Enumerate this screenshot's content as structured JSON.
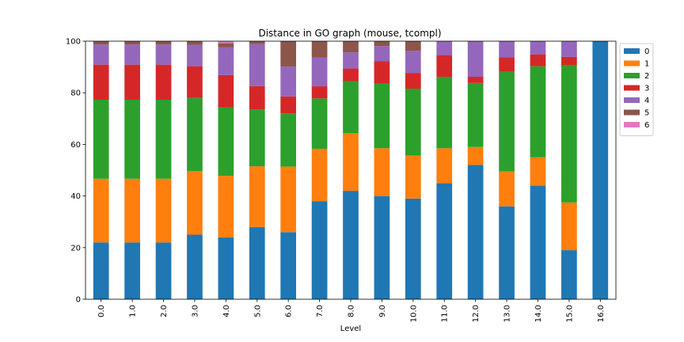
{
  "chart_data": {
    "type": "bar",
    "stacked": true,
    "title": "Distance in GO graph (mouse, tcompl)",
    "xlabel": "Level",
    "ylabel": "",
    "ylim": [
      0,
      100
    ],
    "yticks": [
      0,
      20,
      40,
      60,
      80,
      100
    ],
    "categories": [
      "0.0",
      "1.0",
      "2.0",
      "3.0",
      "4.0",
      "5.0",
      "6.0",
      "7.0",
      "8.0",
      "9.0",
      "10.0",
      "11.0",
      "12.0",
      "13.0",
      "14.0",
      "15.0",
      "16.0"
    ],
    "legend_position": "outside-right-top",
    "series": [
      {
        "name": "0",
        "color": "#1f77b4",
        "values": [
          22,
          22,
          22,
          25,
          24,
          28,
          26,
          38,
          42,
          40,
          39,
          45,
          52,
          36,
          44,
          19,
          100
        ]
      },
      {
        "name": "1",
        "color": "#ff7f0e",
        "values": [
          24.7,
          24.7,
          24.7,
          24.7,
          23.8,
          23.5,
          25.4,
          20.3,
          22.3,
          18.5,
          16.7,
          13.5,
          7,
          13.5,
          11,
          18.5,
          0
        ]
      },
      {
        "name": "2",
        "color": "#2ca02c",
        "values": [
          30.6,
          30.6,
          30.6,
          28.3,
          26.6,
          22.1,
          20.6,
          19.5,
          20.2,
          25.1,
          25.9,
          27.7,
          24.8,
          38.6,
          35.3,
          53.3,
          0
        ]
      },
      {
        "name": "3",
        "color": "#d62728",
        "values": [
          13.6,
          13.6,
          13.6,
          12.3,
          12.5,
          9,
          6.6,
          4.7,
          4.9,
          8.7,
          6.1,
          8.4,
          2.4,
          5.6,
          4.6,
          3.1,
          0
        ]
      },
      {
        "name": "4",
        "color": "#9467bd",
        "values": [
          7.8,
          7.8,
          7.8,
          8.3,
          10.8,
          16.3,
          11.5,
          11.1,
          6.2,
          5.8,
          8.6,
          5.4,
          13.8,
          6.3,
          5.1,
          6.1,
          0
        ]
      },
      {
        "name": "5",
        "color": "#8c564b",
        "values": [
          1.3,
          1.3,
          1.3,
          1.4,
          1.5,
          1.1,
          9.9,
          6.4,
          4.4,
          1.9,
          3.7,
          0,
          0,
          0,
          0,
          0,
          0
        ]
      },
      {
        "name": "6",
        "color": "#e377c2",
        "values": [
          0,
          0,
          0,
          0,
          0.8,
          0,
          0,
          0,
          0,
          0,
          0,
          0,
          0,
          0,
          0,
          0,
          0
        ]
      }
    ]
  }
}
